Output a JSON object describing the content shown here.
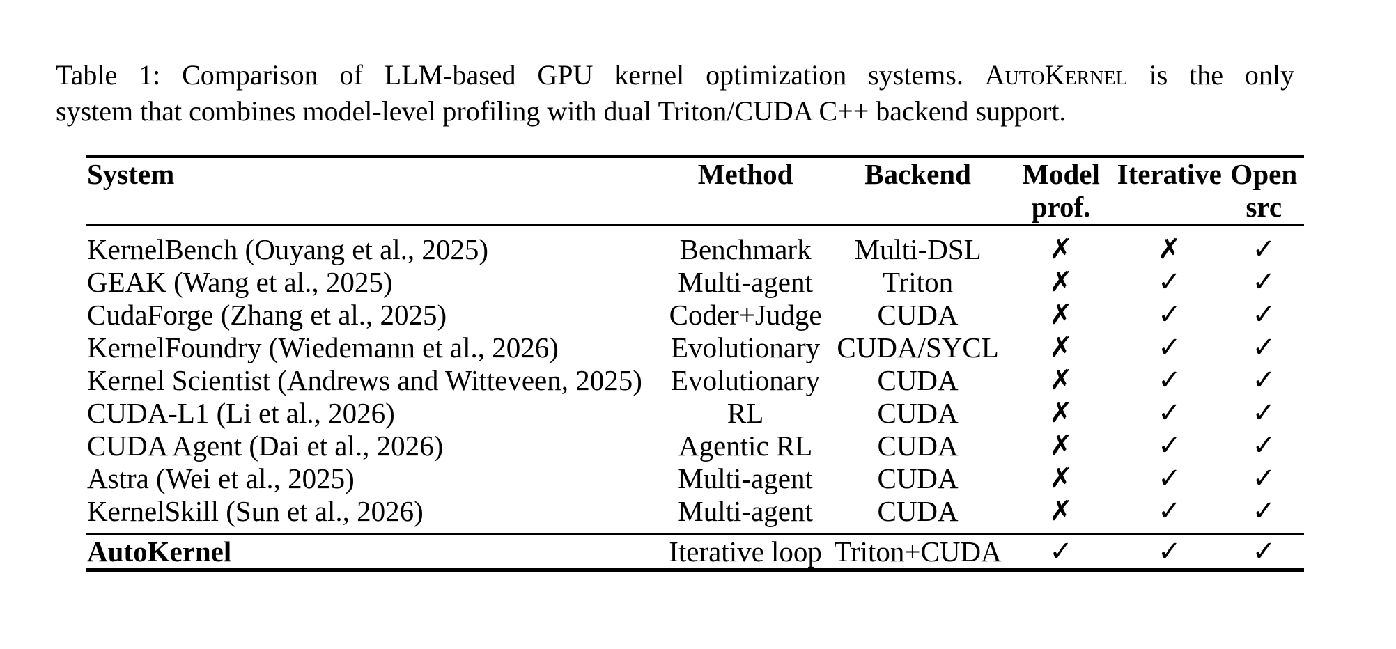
{
  "caption": {
    "line1_before_sc": "Table 1: Comparison of LLM-based GPU kernel optimization systems. ",
    "line1_sc_word": "AutoKernel",
    "line1_after_sc": " is the only",
    "line2": "system that combines model-level profiling with dual Triton/CUDA C++ backend support."
  },
  "table": {
    "columns": [
      {
        "label": "System",
        "sublabel": ""
      },
      {
        "label": "Method",
        "sublabel": ""
      },
      {
        "label": "Backend",
        "sublabel": ""
      },
      {
        "label": "Model",
        "sublabel": "prof."
      },
      {
        "label": "Iterative",
        "sublabel": ""
      },
      {
        "label": "Open",
        "sublabel": "src"
      }
    ],
    "rows": [
      [
        "KernelBench (Ouyang et al., 2025)",
        "Benchmark",
        "Multi-DSL",
        "✗",
        "✗",
        "✓"
      ],
      [
        "GEAK (Wang et al., 2025)",
        "Multi-agent",
        "Triton",
        "✗",
        "✓",
        "✓"
      ],
      [
        "CudaForge (Zhang et al., 2025)",
        "Coder+Judge",
        "CUDA",
        "✗",
        "✓",
        "✓"
      ],
      [
        "KernelFoundry (Wiedemann et al., 2026)",
        "Evolutionary",
        "CUDA/SYCL",
        "✗",
        "✓",
        "✓"
      ],
      [
        "Kernel Scientist (Andrews and Witteveen, 2025)",
        "Evolutionary",
        "CUDA",
        "✗",
        "✓",
        "✓"
      ],
      [
        "CUDA-L1 (Li et al., 2026)",
        "RL",
        "CUDA",
        "✗",
        "✓",
        "✓"
      ],
      [
        "CUDA Agent (Dai et al., 2026)",
        "Agentic RL",
        "CUDA",
        "✗",
        "✓",
        "✓"
      ],
      [
        "Astra (Wei et al., 2025)",
        "Multi-agent",
        "CUDA",
        "✗",
        "✓",
        "✓"
      ],
      [
        "KernelSkill (Sun et al., 2026)",
        "Multi-agent",
        "CUDA",
        "✗",
        "✓",
        "✓"
      ]
    ],
    "highlight_row": [
      "AutoKernel",
      "Iterative loop",
      "Triton+CUDA",
      "✓",
      "✓",
      "✓"
    ],
    "text_color": "#000000",
    "background_color": "#ffffff"
  }
}
